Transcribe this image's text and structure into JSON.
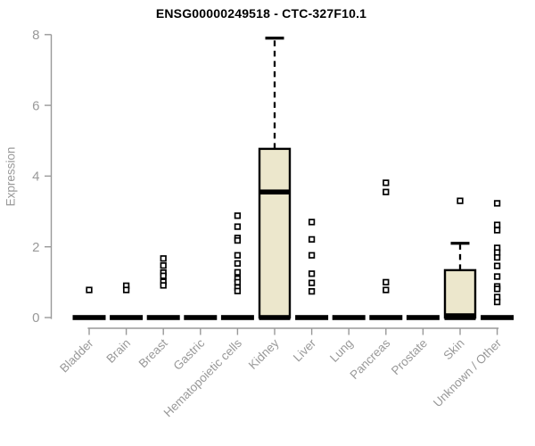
{
  "page": {
    "background": "#FFFFFF"
  },
  "chart_data": {
    "type": "boxplot",
    "title": "ENSG00000249518 - CTC-327F10.1",
    "ylabel": "Expression",
    "xlabel": "",
    "ylim": [
      0,
      8
    ],
    "yticks": [
      0,
      2,
      4,
      6,
      8
    ],
    "grid": false,
    "legend": "none",
    "categories": [
      "Bladder",
      "Brain",
      "Breast",
      "Gastric",
      "Hematopoietic cells",
      "Kidney",
      "Liver",
      "Lung",
      "Pancreas",
      "Prostate",
      "Skin",
      "Unknown / Other"
    ],
    "boxes": [
      {
        "category": "Bladder",
        "q1": 0,
        "median": 0,
        "q3": 0,
        "whisker_low": 0,
        "whisker_high": 0,
        "outliers": [
          0.78
        ]
      },
      {
        "category": "Brain",
        "q1": 0,
        "median": 0,
        "q3": 0,
        "whisker_low": 0,
        "whisker_high": 0,
        "outliers": [
          0.9,
          0.78
        ]
      },
      {
        "category": "Breast",
        "q1": 0,
        "median": 0,
        "q3": 0,
        "whisker_low": 0,
        "whisker_high": 0,
        "outliers": [
          1.67,
          1.47,
          1.27,
          1.18,
          1.01,
          0.91
        ]
      },
      {
        "category": "Gastric",
        "q1": 0,
        "median": 0,
        "q3": 0,
        "whisker_low": 0,
        "whisker_high": 0,
        "outliers": []
      },
      {
        "category": "Hematopoietic cells",
        "q1": 0,
        "median": 0,
        "q3": 0,
        "whisker_low": 0,
        "whisker_high": 0,
        "outliers": [
          2.88,
          2.57,
          2.25,
          2.18,
          1.76,
          1.53,
          1.28,
          1.1,
          1.0,
          0.85,
          0.75
        ]
      },
      {
        "category": "Kidney",
        "q1": 0,
        "median": 3.55,
        "q3": 4.77,
        "whisker_low": 0,
        "whisker_high": 7.9,
        "outliers": []
      },
      {
        "category": "Liver",
        "q1": 0,
        "median": 0,
        "q3": 0,
        "whisker_low": 0,
        "whisker_high": 0,
        "outliers": [
          2.7,
          2.21,
          1.76,
          1.24,
          0.98,
          0.74
        ]
      },
      {
        "category": "Lung",
        "q1": 0,
        "median": 0,
        "q3": 0,
        "whisker_low": 0,
        "whisker_high": 0,
        "outliers": []
      },
      {
        "category": "Pancreas",
        "q1": 0,
        "median": 0,
        "q3": 0,
        "whisker_low": 0,
        "whisker_high": 0,
        "outliers": [
          3.81,
          3.55,
          1.0,
          0.78
        ]
      },
      {
        "category": "Prostate",
        "q1": 0,
        "median": 0,
        "q3": 0,
        "whisker_low": 0,
        "whisker_high": 0,
        "outliers": []
      },
      {
        "category": "Skin",
        "q1": 0,
        "median": 0.05,
        "q3": 1.34,
        "whisker_low": 0,
        "whisker_high": 2.1,
        "outliers": [
          3.3
        ]
      },
      {
        "category": "Unknown / Other",
        "q1": 0,
        "median": 0,
        "q3": 0,
        "whisker_low": 0,
        "whisker_high": 0,
        "outliers": [
          3.23,
          2.62,
          2.47,
          1.97,
          1.84,
          1.7,
          1.46,
          1.16,
          0.88,
          0.81,
          0.58,
          0.44
        ]
      }
    ],
    "colors": {
      "box_fill": "#ECE7CC",
      "box_stroke": "#000000",
      "median": "#000000",
      "outlier_fill": "#FFFFFF",
      "outlier_stroke": "#000000",
      "axis": "#999999",
      "tick_label": "#999999",
      "title": "#000000",
      "background": "#FFFFFF"
    }
  }
}
